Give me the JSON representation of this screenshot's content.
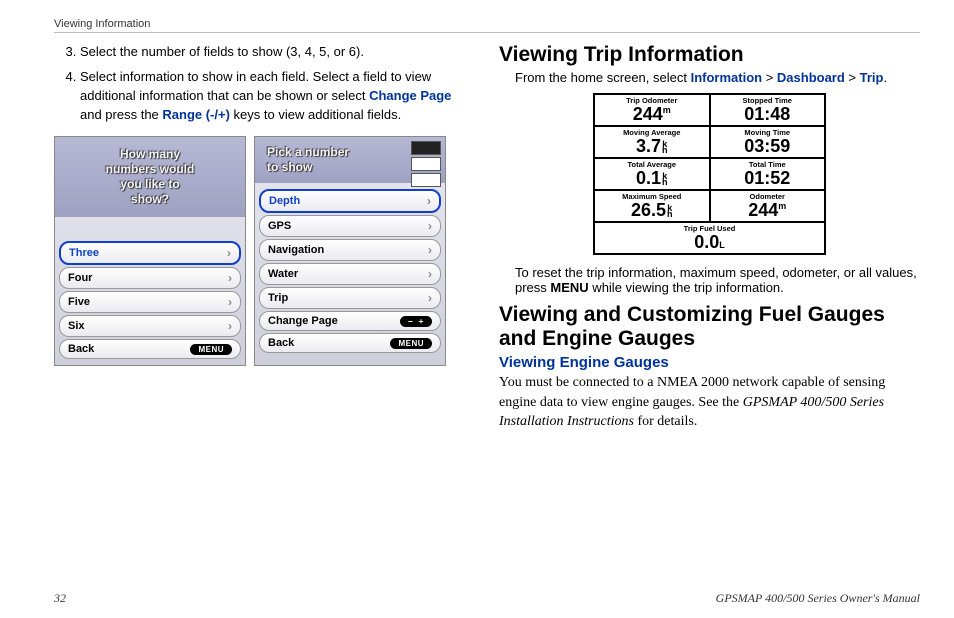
{
  "header": "Viewing Information",
  "left": {
    "instructions": [
      "Select the number of fields to show (3, 4, 5, or 6).",
      "Select information to show in each field. Select a field to view additional information that can be shown or select <b>Change Page</b> and press the <b>Range (-/+)</b> keys to view additional fields."
    ],
    "link_change_page": "Change Page",
    "link_range": "Range (-/+)",
    "device1": {
      "prompt_lines": [
        "How many",
        "numbers would",
        "you like to",
        "show?"
      ],
      "items": [
        {
          "label": "Three",
          "selected": true
        },
        {
          "label": "Four"
        },
        {
          "label": "Five"
        },
        {
          "label": "Six"
        },
        {
          "label": "Back",
          "pill": "MENU"
        }
      ]
    },
    "device2": {
      "prompt_lines": [
        "Pick a number",
        "to show"
      ],
      "items": [
        {
          "label": "Depth",
          "selected": true
        },
        {
          "label": "GPS"
        },
        {
          "label": "Navigation"
        },
        {
          "label": "Water"
        },
        {
          "label": "Trip"
        },
        {
          "label": "Change Page",
          "pill": "−  +"
        },
        {
          "label": "Back",
          "pill": "MENU"
        }
      ]
    }
  },
  "right": {
    "h2_trip": "Viewing Trip Information",
    "breadcrumb_prefix": "From the home screen, select ",
    "breadcrumb": [
      "Information",
      "Dashboard",
      "Trip"
    ],
    "trip_cells": [
      {
        "label": "Trip Odometer",
        "value": "244",
        "suffix_sup": "m"
      },
      {
        "label": "Stopped Time",
        "value": "01:48"
      },
      {
        "label": "Moving Average",
        "value": "3.7",
        "suffix_unit": "k h"
      },
      {
        "label": "Moving Time",
        "value": "03:59"
      },
      {
        "label": "Total Average",
        "value": "0.1",
        "suffix_unit": "k h"
      },
      {
        "label": "Total Time",
        "value": "01:52"
      },
      {
        "label": "Maximum Speed",
        "value": "26.5",
        "suffix_unit": "k h"
      },
      {
        "label": "Odometer",
        "value": "244",
        "suffix_sup": "m"
      }
    ],
    "trip_full": {
      "label": "Trip Fuel Used",
      "value": "0.0",
      "suffix_unit": "L"
    },
    "reset_text_pre": "To reset the trip information, maximum speed, odometer, or all values, press ",
    "reset_bold": "MENU",
    "reset_text_post": " while viewing the trip information.",
    "h2_fuel": "Viewing and Customizing Fuel Gauges and Engine Gauges",
    "h3_engine": "Viewing Engine Gauges",
    "engine_text_pre": "You must be connected to a NMEA 2000 network capable of sensing engine data to view engine gauges. See the ",
    "engine_text_italic": "GPSMAP 400/500 Series Installation Instructions",
    "engine_text_post": " for details."
  },
  "footer": {
    "page": "32",
    "title": "GPSMAP 400/500 Series Owner's Manual"
  },
  "colors": {
    "link": "#003399",
    "accent": "#1040c8"
  }
}
